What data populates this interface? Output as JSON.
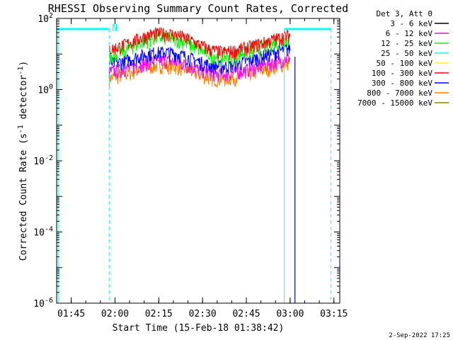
{
  "chart_data": {
    "type": "line",
    "title": "RHESSI Observing Summary Count Rates, Corrected",
    "xlabel": "Start Time (15-Feb-18 01:38:42)",
    "ylabel": "Corrected Count Rate (s-1 detector-1)",
    "ylabel_parts": {
      "main": "Corrected Count Rate (s",
      "sup1": "-1",
      "mid": " detector",
      "sup2": "-1",
      "end": ")"
    },
    "x_start": "01:38:42",
    "xlim_minutes": [
      100,
      197
    ],
    "x_ticks": [
      {
        "label": "01:45",
        "minute": 105
      },
      {
        "label": "02:00",
        "minute": 120
      },
      {
        "label": "02:15",
        "minute": 135
      },
      {
        "label": "02:30",
        "minute": 150
      },
      {
        "label": "02:45",
        "minute": 165
      },
      {
        "label": "03:00",
        "minute": 180
      },
      {
        "label": "03:15",
        "minute": 195
      }
    ],
    "y_scale": "log",
    "ylim": [
      1e-06,
      100
    ],
    "y_ticks": [
      {
        "base": "10",
        "exp": "2",
        "value": 100
      },
      {
        "base": "10",
        "exp": "0",
        "value": 1
      },
      {
        "base": "10",
        "exp": "-2",
        "value": 0.01
      },
      {
        "base": "10",
        "exp": "-4",
        "value": 0.0001
      },
      {
        "base": "10",
        "exp": "-6",
        "value": 1e-06
      }
    ],
    "legend_header": "Det 3, Att 0",
    "legend_position": "right",
    "series": [
      {
        "name": "3 - 6 keV",
        "color": "#000000"
      },
      {
        "name": "6 - 12 keV",
        "color": "#ff00ff"
      },
      {
        "name": "12 - 25 keV",
        "color": "#00ff00"
      },
      {
        "name": "25 - 50 keV",
        "color": "#00ffff"
      },
      {
        "name": "50 - 100 keV",
        "color": "#ffff00"
      },
      {
        "name": "100 - 300 keV",
        "color": "#ff0000"
      },
      {
        "name": "300 - 800 keV",
        "color": "#0000ff"
      },
      {
        "name": "800 - 7000 keV",
        "color": "#ff8000"
      },
      {
        "name": "7000 - 15000 keV",
        "color": "#808000"
      }
    ],
    "data_window_minutes": [
      118,
      180
    ],
    "approx_profiles": [
      {
        "color": "#ff0000",
        "start": 12,
        "peak": 40,
        "dip": 10,
        "end": 35
      },
      {
        "color": "#00ff00",
        "start": 8,
        "peak": 30,
        "dip": 7,
        "end": 28
      },
      {
        "color": "#0000ff",
        "start": 5,
        "peak": 12,
        "dip": 4,
        "end": 15
      },
      {
        "color": "#ff00ff",
        "start": 3,
        "peak": 7,
        "dip": 2.5,
        "end": 8
      },
      {
        "color": "#ff8000",
        "start": 2,
        "peak": 5,
        "dip": 1.8,
        "end": 6
      }
    ],
    "markers": {
      "saa_or_night_bar_color": "#00ffff",
      "n_label": "N",
      "vertical_lines_minutes": [
        100.5,
        118,
        178,
        194
      ]
    }
  },
  "footer_date": "2-Sep-2022 17:25"
}
